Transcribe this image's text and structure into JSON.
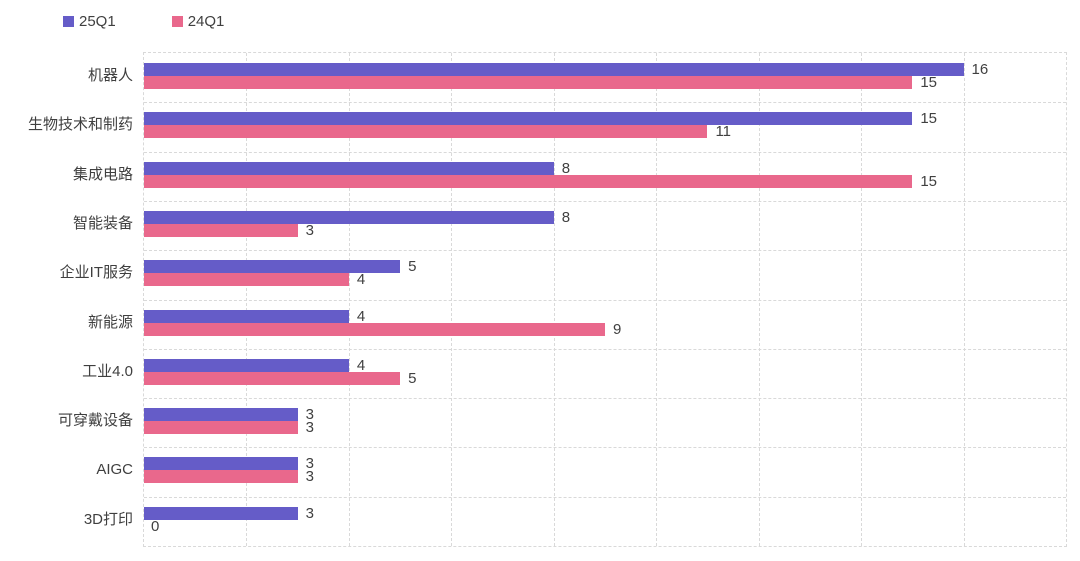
{
  "chart_data": {
    "type": "bar",
    "orientation": "horizontal",
    "title": "",
    "categories": [
      "机器人",
      "生物技术和制药",
      "集成电路",
      "智能装备",
      "企业IT服务",
      "新能源",
      "工业4.0",
      "可穿戴设备",
      "AIGC",
      "3D打印"
    ],
    "series": [
      {
        "name": "25Q1",
        "color": "#655CC8",
        "values": [
          16,
          15,
          8,
          8,
          5,
          4,
          4,
          3,
          3,
          3
        ]
      },
      {
        "name": "24Q1",
        "color": "#E9688C",
        "values": [
          15,
          11,
          15,
          3,
          4,
          9,
          5,
          3,
          3,
          0
        ]
      }
    ],
    "xlim": [
      0,
      18
    ],
    "grid_step": 2,
    "grid": true,
    "grid_style": "dashed",
    "grid_color": "#D9D9D9",
    "legend_position": "top-left",
    "data_labels": true,
    "label_color": "#404040",
    "background": "#FFFFFF"
  }
}
